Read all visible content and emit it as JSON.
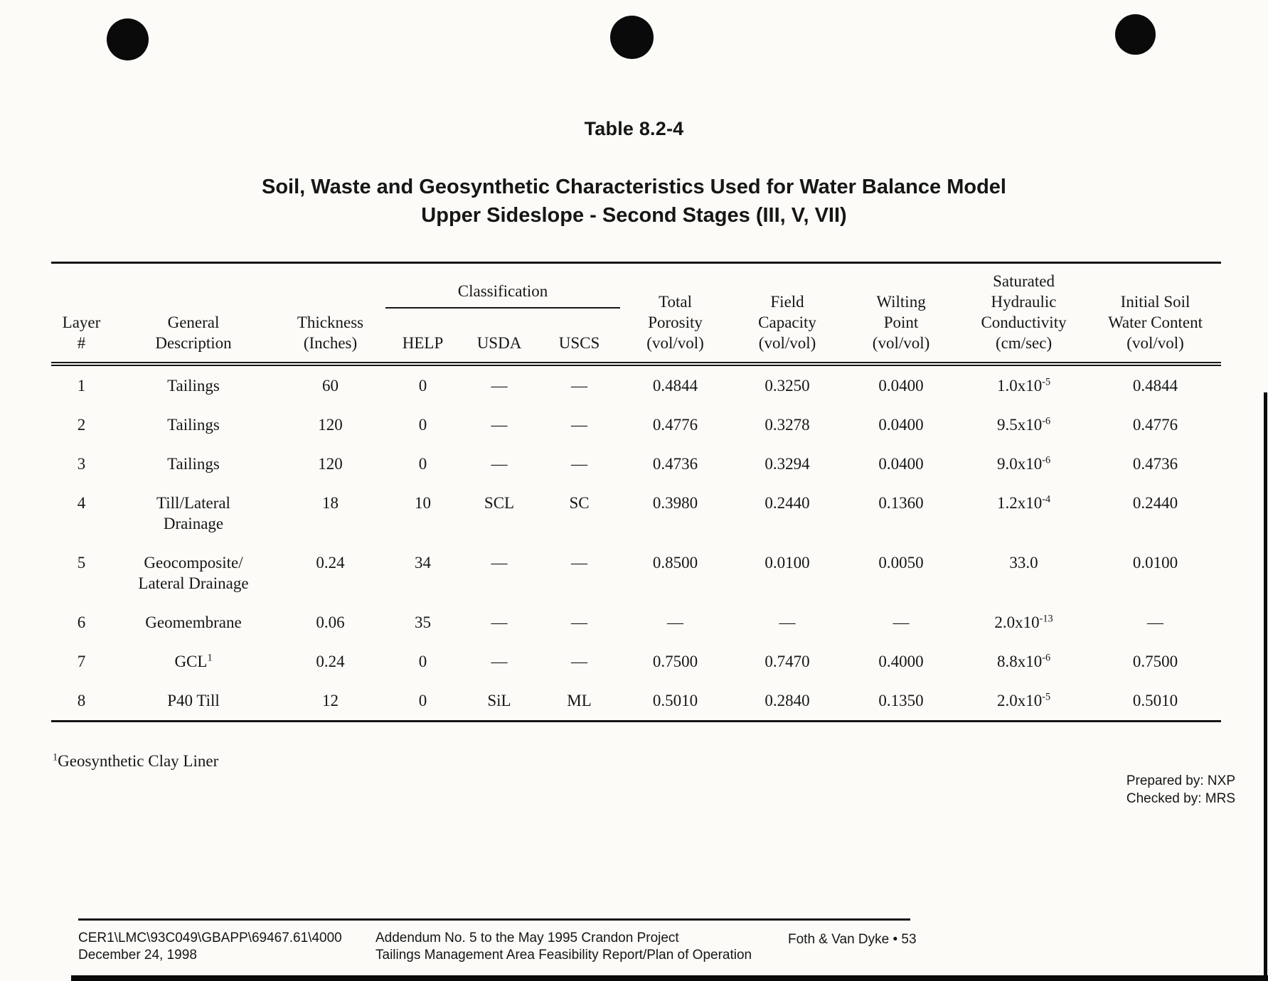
{
  "page": {
    "table_label": "Table 8.2-4",
    "title_line1": "Soil, Waste and Geosynthetic Characteristics Used for Water Balance Model",
    "title_line2": "Upper Sideslope - Second Stages (III, V, VII)",
    "footnote_sup": "1",
    "footnote_text": "Geosynthetic Clay Liner",
    "prepared_by": "Prepared by:  NXP",
    "checked_by": "Checked by:  MRS"
  },
  "table": {
    "classification_label": "Classification",
    "headers": {
      "layer": "Layer\n#",
      "description": "General\nDescription",
      "thickness": "Thickness\n(Inches)",
      "help": "HELP",
      "usda": "USDA",
      "uscs": "USCS",
      "porosity": "Total\nPorosity\n(vol/vol)",
      "capacity": "Field\nCapacity\n(vol/vol)",
      "wilting": "Wilting\nPoint\n(vol/vol)",
      "conductivity": "Saturated\nHydraulic\nConductivity\n(cm/sec)",
      "water": "Initial Soil\nWater Content\n(vol/vol)"
    },
    "rows": [
      {
        "layer": "1",
        "desc": "Tailings",
        "desc_sup": "",
        "thickness": "60",
        "help": "0",
        "usda": "—",
        "uscs": "—",
        "porosity": "0.4844",
        "capacity": "0.3250",
        "wilting": "0.0400",
        "k_base": "1.0x10",
        "k_exp": "-5",
        "water": "0.4844"
      },
      {
        "layer": "2",
        "desc": "Tailings",
        "desc_sup": "",
        "thickness": "120",
        "help": "0",
        "usda": "—",
        "uscs": "—",
        "porosity": "0.4776",
        "capacity": "0.3278",
        "wilting": "0.0400",
        "k_base": "9.5x10",
        "k_exp": "-6",
        "water": "0.4776"
      },
      {
        "layer": "3",
        "desc": "Tailings",
        "desc_sup": "",
        "thickness": "120",
        "help": "0",
        "usda": "—",
        "uscs": "—",
        "porosity": "0.4736",
        "capacity": "0.3294",
        "wilting": "0.0400",
        "k_base": "9.0x10",
        "k_exp": "-6",
        "water": "0.4736"
      },
      {
        "layer": "4",
        "desc": "Till/Lateral\nDrainage",
        "desc_sup": "",
        "thickness": "18",
        "help": "10",
        "usda": "SCL",
        "uscs": "SC",
        "porosity": "0.3980",
        "capacity": "0.2440",
        "wilting": "0.1360",
        "k_base": "1.2x10",
        "k_exp": "-4",
        "water": "0.2440"
      },
      {
        "layer": "5",
        "desc": "Geocomposite/\nLateral Drainage",
        "desc_sup": "",
        "thickness": "0.24",
        "help": "34",
        "usda": "—",
        "uscs": "—",
        "porosity": "0.8500",
        "capacity": "0.0100",
        "wilting": "0.0050",
        "k_base": "33.0",
        "k_exp": "",
        "water": "0.0100"
      },
      {
        "layer": "6",
        "desc": "Geomembrane",
        "desc_sup": "",
        "thickness": "0.06",
        "help": "35",
        "usda": "—",
        "uscs": "—",
        "porosity": "—",
        "capacity": "—",
        "wilting": "—",
        "k_base": "2.0x10",
        "k_exp": "-13",
        "water": "—"
      },
      {
        "layer": "7",
        "desc": "GCL",
        "desc_sup": "1",
        "thickness": "0.24",
        "help": "0",
        "usda": "—",
        "uscs": "—",
        "porosity": "0.7500",
        "capacity": "0.7470",
        "wilting": "0.4000",
        "k_base": "8.8x10",
        "k_exp": "-6",
        "water": "0.7500"
      },
      {
        "layer": "8",
        "desc": "P40 Till",
        "desc_sup": "",
        "thickness": "12",
        "help": "0",
        "usda": "SiL",
        "uscs": "ML",
        "porosity": "0.5010",
        "capacity": "0.2840",
        "wilting": "0.1350",
        "k_base": "2.0x10",
        "k_exp": "-5",
        "water": "0.5010"
      }
    ]
  },
  "footer": {
    "doc_ref": "CER1\\LMC\\93C049\\GBAPP\\69467.61\\4000",
    "date": "December 24, 1998",
    "center_line1": "Addendum No. 5 to the May 1995 Crandon Project",
    "center_line2": "Tailings Management Area Feasibility Report/Plan of Operation",
    "right": "Foth & Van Dyke • 53"
  }
}
